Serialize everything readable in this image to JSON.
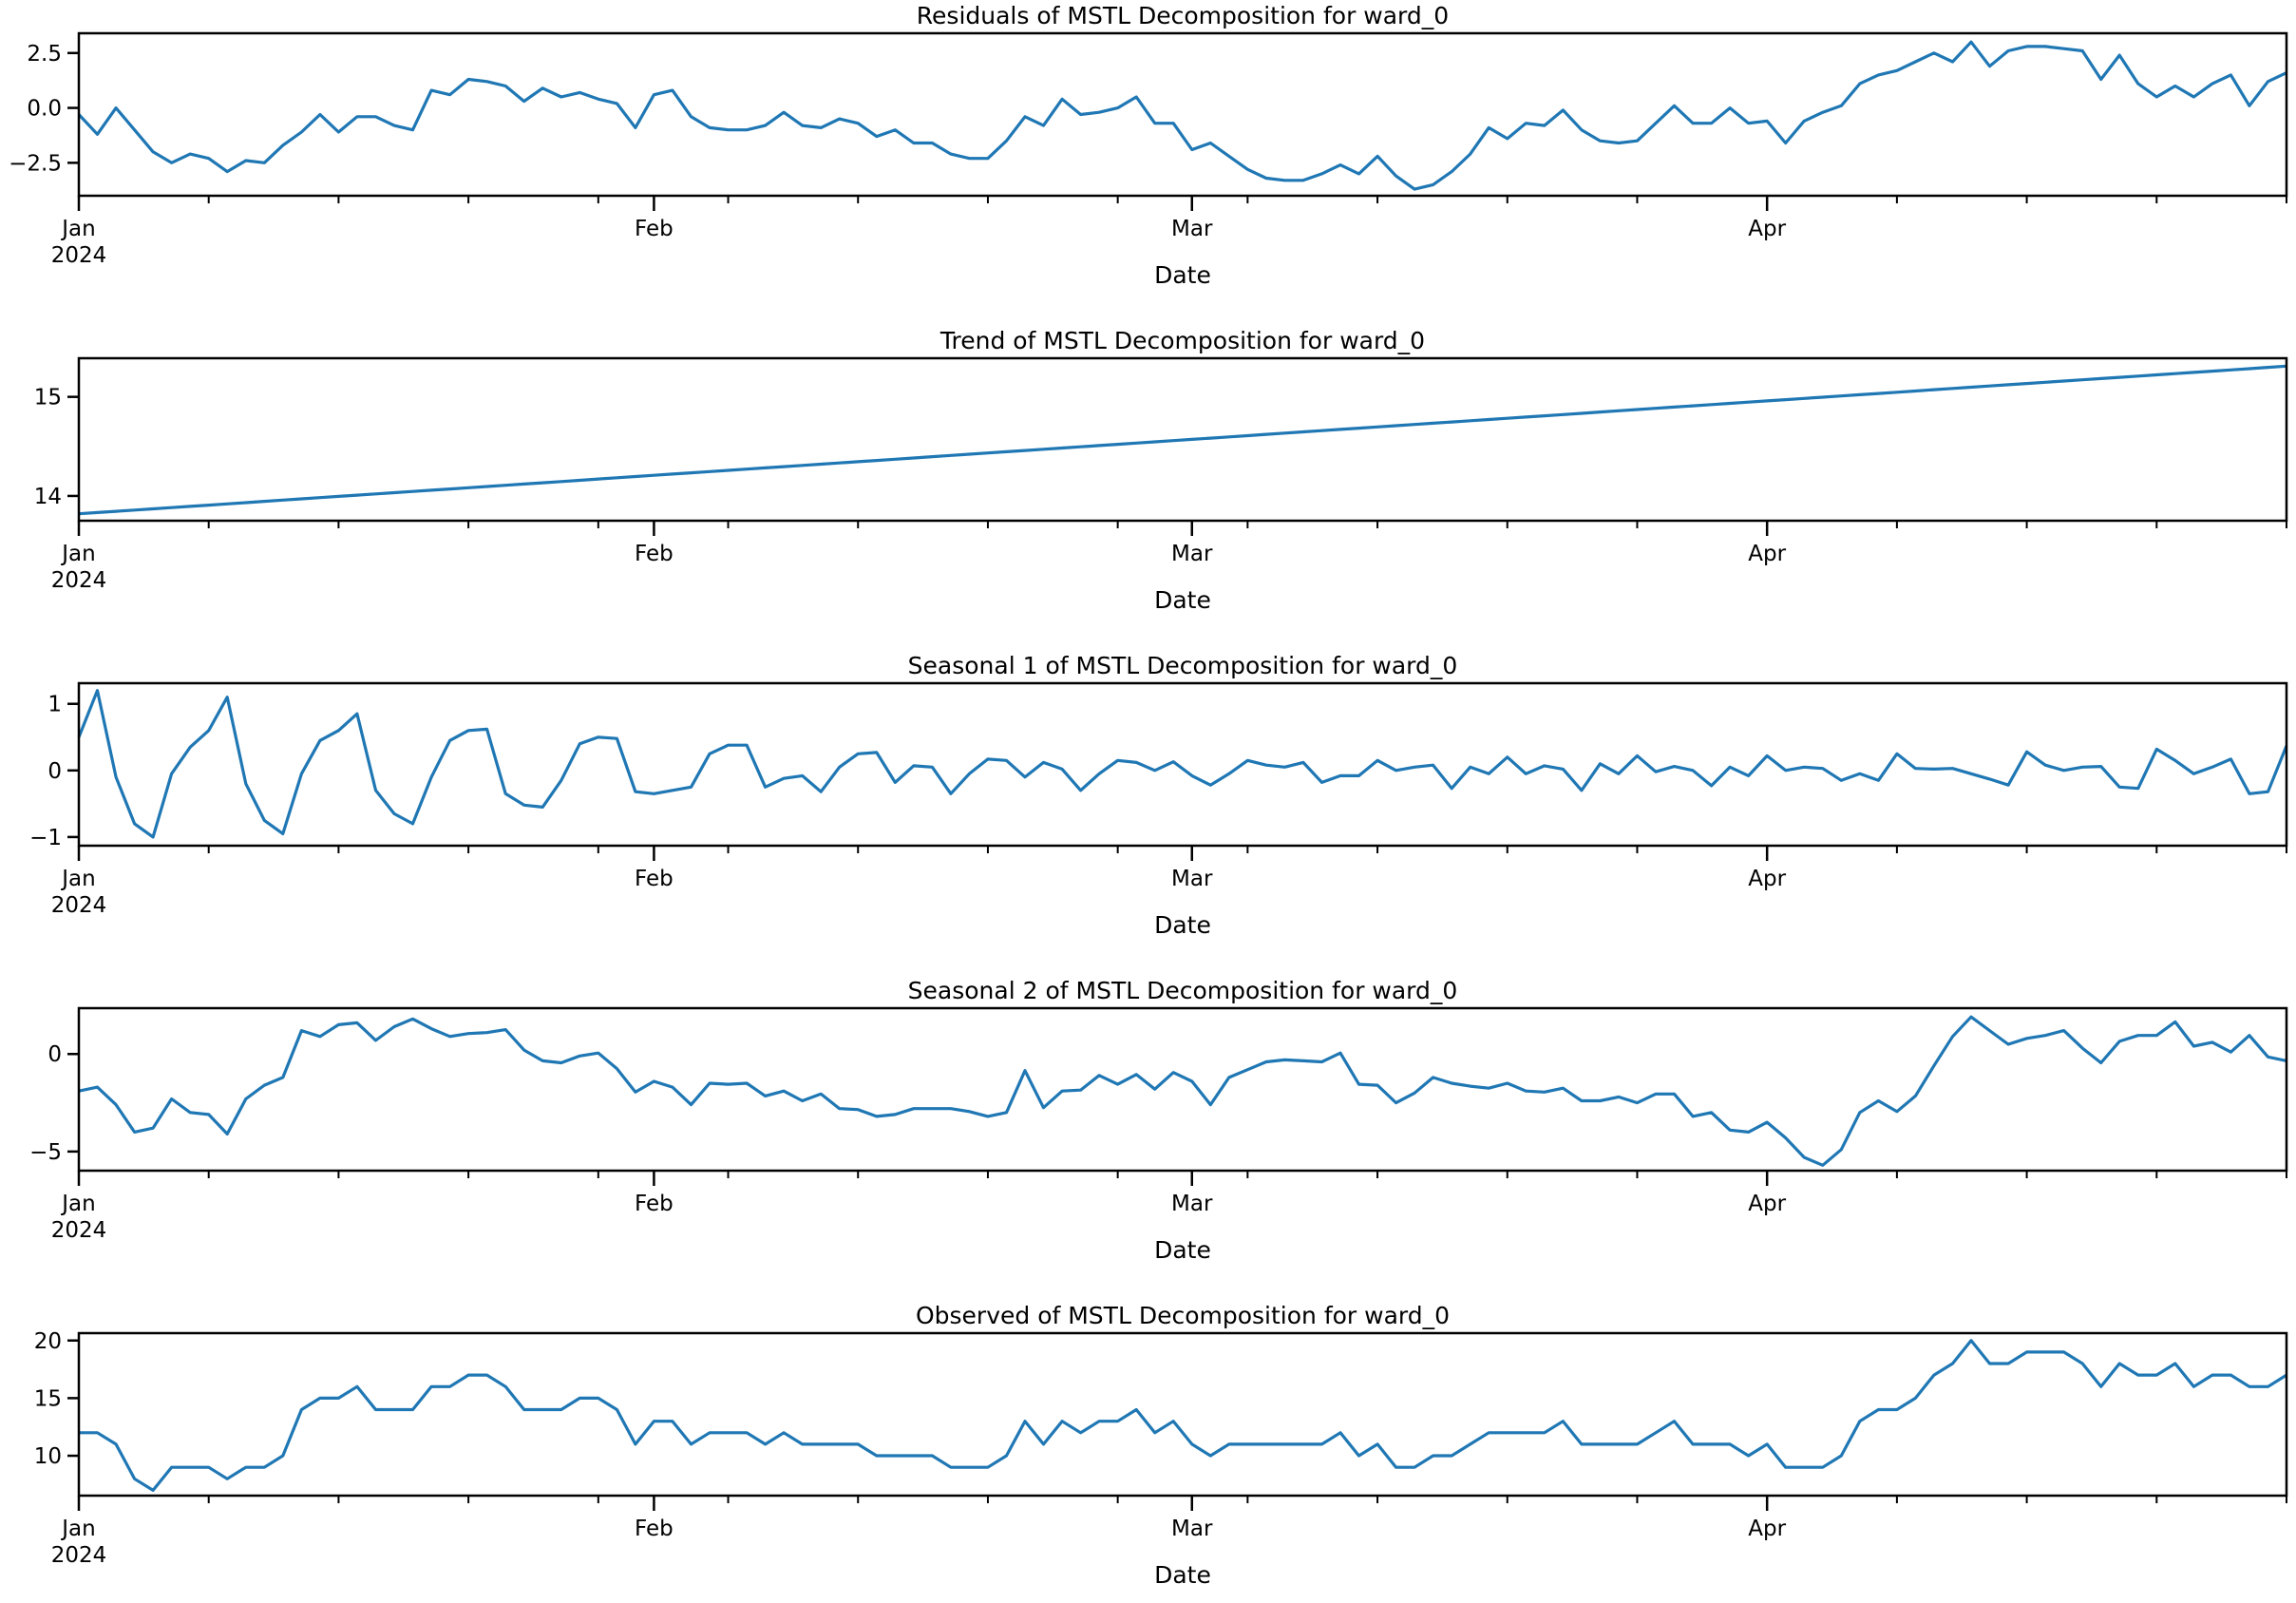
{
  "chart_data": [
    {
      "type": "line",
      "title": "Residuals of MSTL Decomposition for ward_0",
      "xlabel": "Date",
      "ylabel": "",
      "ylim": [
        -4.0,
        3.4
      ],
      "yticks": [
        2.5,
        0,
        -2.5
      ],
      "ytick_labels": [
        "2.5",
        "0.0",
        "−2.5"
      ],
      "values": [
        -0.3,
        -1.2,
        0,
        -1,
        -2,
        -2.5,
        -2.1,
        -2.3,
        -2.9,
        -2.4,
        -2.5,
        -1.7,
        -1.1,
        -0.3,
        -1.1,
        -0.4,
        -0.4,
        -0.8,
        -1.0,
        0.8,
        0.6,
        1.3,
        1.2,
        1.0,
        0.3,
        0.9,
        0.5,
        0.7,
        0.4,
        0.2,
        -0.9,
        0.6,
        0.8,
        -0.4,
        -0.9,
        -1.0,
        -1.0,
        -0.8,
        -0.2,
        -0.8,
        -0.9,
        -0.5,
        -0.7,
        -1.3,
        -1.0,
        -1.6,
        -1.6,
        -2.1,
        -2.3,
        -2.3,
        -1.5,
        -0.4,
        -0.8,
        0.4,
        -0.3,
        -0.2,
        0.0,
        0.5,
        -0.7,
        -0.7,
        -1.9,
        -1.6,
        -2.2,
        -2.8,
        -3.2,
        -3.3,
        -3.3,
        -3.0,
        -2.6,
        -3.0,
        -2.2,
        -3.1,
        -3.7,
        -3.5,
        -2.9,
        -2.1,
        -0.9,
        -1.4,
        -0.7,
        -0.8,
        -0.1,
        -1.0,
        -1.5,
        -1.6,
        -1.5,
        -0.7,
        0.1,
        -0.7,
        -0.7,
        0.0,
        -0.7,
        -0.6,
        -1.6,
        -0.6,
        -0.2,
        0.1,
        1.1,
        1.5,
        1.7,
        2.1,
        2.5,
        2.1,
        3.0,
        1.9,
        2.6,
        2.8,
        2.8,
        2.7,
        2.6,
        1.3,
        2.4,
        1.1,
        0.5,
        1.0,
        0.5,
        1.1,
        1.5,
        0.1,
        1.2,
        1.6
      ]
    },
    {
      "type": "line",
      "title": "Trend of MSTL Decomposition for ward_0",
      "xlabel": "Date",
      "ylabel": "",
      "ylim": [
        13.75,
        15.39
      ],
      "yticks": [
        15,
        14
      ],
      "ytick_labels": [
        "15",
        "14"
      ],
      "linear": {
        "start": 13.82,
        "end": 15.31
      }
    },
    {
      "type": "line",
      "title": "Seasonal 1 of MSTL Decomposition for ward_0",
      "xlabel": "Date",
      "ylabel": "",
      "ylim": [
        -1.13,
        1.31
      ],
      "yticks": [
        1,
        0,
        -1
      ],
      "ytick_labels": [
        "1",
        "0",
        "−1"
      ],
      "values": [
        0.5,
        1.2,
        -0.1,
        -0.8,
        -1.0,
        -0.05,
        0.35,
        0.6,
        1.1,
        -0.2,
        -0.75,
        -0.95,
        -0.05,
        0.45,
        0.6,
        0.85,
        -0.3,
        -0.65,
        -0.8,
        -0.1,
        0.45,
        0.6,
        0.62,
        -0.35,
        -0.52,
        -0.55,
        -0.15,
        0.4,
        0.5,
        0.48,
        -0.32,
        -0.35,
        -0.3,
        -0.25,
        0.25,
        0.38,
        0.38,
        -0.25,
        -0.12,
        -0.08,
        -0.32,
        0.05,
        0.25,
        0.27,
        -0.18,
        0.07,
        0.05,
        -0.35,
        -0.05,
        0.17,
        0.15,
        -0.1,
        0.12,
        0.02,
        -0.3,
        -0.05,
        0.15,
        0.12,
        0.0,
        0.13,
        -0.08,
        -0.22,
        -0.05,
        0.15,
        0.08,
        0.05,
        0.12,
        -0.18,
        -0.08,
        -0.08,
        0.15,
        0.0,
        0.05,
        0.08,
        -0.27,
        0.05,
        -0.05,
        0.2,
        -0.05,
        0.07,
        0.02,
        -0.3,
        0.1,
        -0.05,
        0.22,
        -0.02,
        0.06,
        0.0,
        -0.23,
        0.05,
        -0.08,
        0.22,
        0.0,
        0.05,
        0.03,
        -0.15,
        -0.05,
        -0.15,
        0.25,
        0.03,
        0.02,
        0.03,
        -0.05,
        -0.13,
        -0.22,
        0.28,
        0.08,
        0.0,
        0.05,
        0.06,
        -0.25,
        -0.27,
        0.32,
        0.15,
        -0.05,
        0.05,
        0.17,
        -0.35,
        -0.32,
        0.37
      ]
    },
    {
      "type": "line",
      "title": "Seasonal 2 of MSTL Decomposition for ward_0",
      "xlabel": "Date",
      "ylabel": "",
      "ylim": [
        -5.98,
        2.35
      ],
      "yticks": [
        0,
        -5
      ],
      "ytick_labels": [
        "0",
        "−5"
      ],
      "values": [
        -1.9,
        -1.7,
        -2.6,
        -4.0,
        -3.8,
        -2.3,
        -3.0,
        -3.1,
        -4.1,
        -2.3,
        -1.6,
        -1.2,
        1.2,
        0.9,
        1.5,
        1.6,
        0.7,
        1.4,
        1.8,
        1.3,
        0.9,
        1.05,
        1.1,
        1.25,
        0.2,
        -0.35,
        -0.45,
        -0.1,
        0.05,
        -0.75,
        -1.95,
        -1.4,
        -1.7,
        -2.6,
        -1.5,
        -1.55,
        -1.5,
        -2.15,
        -1.9,
        -2.4,
        -2.05,
        -2.8,
        -2.85,
        -3.2,
        -3.1,
        -2.8,
        -2.8,
        -2.8,
        -2.95,
        -3.2,
        -3.0,
        -0.85,
        -2.75,
        -1.9,
        -1.85,
        -1.1,
        -1.55,
        -1.05,
        -1.8,
        -0.95,
        -1.4,
        -2.6,
        -1.2,
        -0.8,
        -0.4,
        -0.3,
        -0.35,
        -0.4,
        0.05,
        -1.55,
        -1.6,
        -2.5,
        -2.0,
        -1.2,
        -1.5,
        -1.65,
        -1.75,
        -1.5,
        -1.9,
        -1.95,
        -1.75,
        -2.4,
        -2.4,
        -2.2,
        -2.5,
        -2.05,
        -2.05,
        -3.2,
        -3.0,
        -3.9,
        -4.0,
        -3.5,
        -4.3,
        -5.3,
        -5.7,
        -4.9,
        -3.0,
        -2.4,
        -2.95,
        -2.15,
        -0.6,
        0.9,
        1.9,
        1.2,
        0.5,
        0.8,
        0.95,
        1.2,
        0.3,
        -0.45,
        0.65,
        0.95,
        0.95,
        1.65,
        0.4,
        0.6,
        0.1,
        0.95,
        -0.15,
        -0.35
      ]
    },
    {
      "type": "line",
      "title": "Observed of MSTL Decomposition for ward_0",
      "xlabel": "Date",
      "ylabel": "",
      "ylim": [
        6.54,
        20.64
      ],
      "yticks": [
        20,
        15,
        10
      ],
      "ytick_labels": [
        "20",
        "15",
        "10"
      ],
      "values": [
        12,
        12,
        11,
        8,
        7,
        9,
        9,
        9,
        8,
        9,
        9,
        10,
        14,
        15,
        15,
        16,
        14,
        14,
        14,
        16,
        16,
        17,
        17,
        16,
        14,
        14,
        14,
        15,
        15,
        14,
        11,
        13,
        13,
        11,
        12,
        12,
        12,
        11,
        12,
        11,
        11,
        11,
        11,
        10,
        10,
        10,
        10,
        9,
        9,
        9,
        10,
        13,
        11,
        13,
        12,
        13,
        13,
        14,
        12,
        13,
        11,
        10,
        11,
        11,
        11,
        11,
        11,
        11,
        12,
        10,
        11,
        9,
        9,
        10,
        10,
        11,
        12,
        12,
        12,
        12,
        13,
        11,
        11,
        11,
        11,
        12,
        13,
        11,
        11,
        11,
        10,
        11,
        9,
        9,
        9,
        10,
        13,
        14,
        14,
        15,
        17,
        18,
        20,
        18,
        18,
        19,
        19,
        19,
        18,
        16,
        18,
        17,
        17,
        18,
        16,
        17,
        17,
        16,
        16,
        17
      ]
    }
  ],
  "x_axis": {
    "start_date": "2024-01-01",
    "num_days": 120,
    "month_labels": [
      {
        "day": 0,
        "label": "Jan",
        "sub": "2024"
      },
      {
        "day": 31,
        "label": "Feb"
      },
      {
        "day": 60,
        "label": "Mar"
      },
      {
        "day": 91,
        "label": "Apr"
      }
    ],
    "minor_tick_every_days": 7
  },
  "colors": {
    "line": "#1f77b4",
    "axis": "#000000"
  }
}
